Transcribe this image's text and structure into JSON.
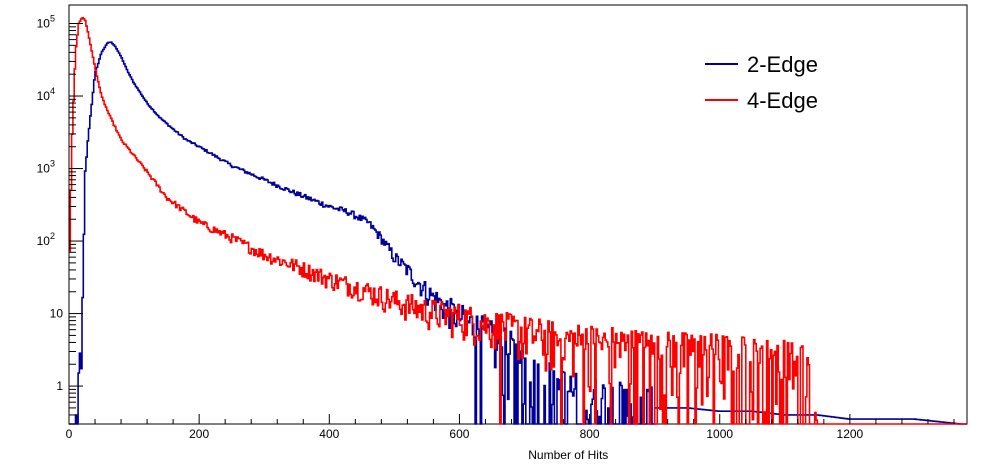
{
  "chart_data": {
    "type": "line",
    "style": "step-histogram",
    "xlabel": "Number of Hits",
    "ylabel": "",
    "xlim": [
      0,
      1380
    ],
    "ylim": [
      0.3,
      180000
    ],
    "y_scale": "log",
    "grid": false,
    "legend": {
      "position": "top-right"
    },
    "x_ticks": [
      0,
      200,
      400,
      600,
      800,
      1000,
      1200
    ],
    "y_ticks": [
      {
        "value": 1,
        "label": "1"
      },
      {
        "value": 10,
        "label": "10"
      },
      {
        "value": 100,
        "label": "10",
        "exp": "2"
      },
      {
        "value": 1000,
        "label": "10",
        "exp": "3"
      },
      {
        "value": 10000,
        "label": "10",
        "exp": "4"
      },
      {
        "value": 100000,
        "label": "10",
        "exp": "5"
      }
    ],
    "series": [
      {
        "name": "2-Edge",
        "color": "#000099",
        "x": [
          0,
          10,
          20,
          25,
          30,
          40,
          50,
          60,
          65,
          70,
          80,
          90,
          100,
          120,
          140,
          160,
          180,
          200,
          250,
          300,
          350,
          400,
          430,
          460,
          480,
          500,
          520,
          550,
          580,
          600,
          620,
          650,
          680,
          700,
          720,
          750,
          800,
          850,
          900,
          950,
          1000,
          1050,
          1100,
          1150,
          1200,
          1250,
          1300,
          1370
        ],
        "y": [
          0.3,
          0.3,
          5,
          900,
          3000,
          20000,
          40000,
          55000,
          55000,
          50000,
          35000,
          22000,
          15000,
          8000,
          5000,
          3500,
          2500,
          2000,
          1100,
          700,
          450,
          300,
          250,
          180,
          110,
          60,
          40,
          20,
          12,
          9,
          7,
          4.5,
          3,
          2.2,
          1.5,
          1.0,
          0.7,
          0.6,
          0.5,
          0.5,
          0.45,
          0.45,
          0.4,
          0.4,
          0.35,
          0.35,
          0.35,
          0.3
        ]
      },
      {
        "name": "4-Edge",
        "color": "#ff0000",
        "x": [
          0,
          5,
          10,
          15,
          20,
          22,
          25,
          30,
          40,
          50,
          60,
          80,
          100,
          120,
          150,
          200,
          250,
          300,
          350,
          400,
          450,
          500,
          550,
          600,
          650,
          700,
          750,
          800,
          850,
          900,
          950,
          1000,
          1050,
          1100,
          1130,
          1140,
          1150,
          1200,
          1300,
          1370
        ],
        "y": [
          30,
          3000,
          40000,
          100000,
          120000,
          120000,
          110000,
          70000,
          25000,
          10000,
          6000,
          2500,
          1500,
          900,
          400,
          180,
          110,
          65,
          45,
          30,
          22,
          15,
          11,
          9,
          7,
          5.5,
          4.5,
          4,
          3.5,
          3,
          3,
          2.8,
          2.5,
          2.3,
          2.0,
          1.0,
          0.3,
          0.3,
          0.3,
          0.3
        ]
      }
    ]
  }
}
